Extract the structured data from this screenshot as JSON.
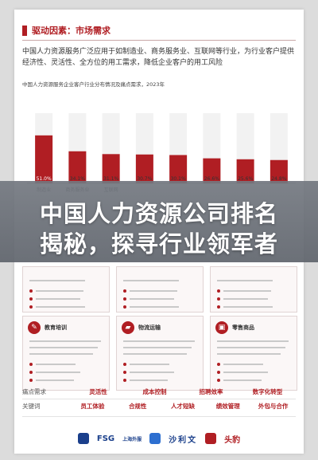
{
  "header": {
    "section_title": "驱动因素：市场需求",
    "intro": "中国人力资源服务广泛应用于如制造业、商务服务业、互联网等行业，为行业客户提供经济性、灵活性、全方位的用工需求，降低企业客户的用工风险"
  },
  "chart_data": {
    "type": "bar",
    "title": "中国人力资源服务企业客户行业分布情况及痛点需求，2023年",
    "categories": [
      "制造业",
      "商务服务业",
      "互联网",
      "",
      "",
      "",
      "",
      ""
    ],
    "values": [
      51.0,
      34.1,
      31.1,
      30.7,
      30.1,
      26.6,
      25.6,
      24.8
    ],
    "value_labels": [
      "51.0%",
      "34.1%",
      "31.1%",
      "30.7%",
      "30.1%",
      "26.6%",
      "25.6%",
      "24.8%"
    ],
    "bar_color": "#b01e23",
    "ylim": [
      0,
      100
    ]
  },
  "banner": {
    "line1": "中国人力资源公司排名",
    "line2": "揭秘，探寻行业领军者"
  },
  "cards": [
    {
      "label": "",
      "icon": "user-icon"
    },
    {
      "label": "",
      "icon": "user-icon"
    },
    {
      "label": "",
      "icon": "user-icon"
    },
    {
      "label": "教育培训",
      "icon": "education-icon"
    },
    {
      "label": "物流运输",
      "icon": "truck-icon"
    },
    {
      "label": "零售商品",
      "icon": "retail-icon"
    }
  ],
  "keywords": {
    "row1_label": "痛点需求",
    "row1": [
      "灵活性",
      "成本控制",
      "招聘效率",
      "数字化转型"
    ],
    "row2_label": "关键词",
    "row2": [
      "员工体验",
      "合规性",
      "人才短缺",
      "绩效管理",
      "外包与合作"
    ]
  },
  "logos": {
    "fsg": "FSG",
    "fsg_sub": "上海外服",
    "sha": "沙利文",
    "tou": "头豹"
  }
}
